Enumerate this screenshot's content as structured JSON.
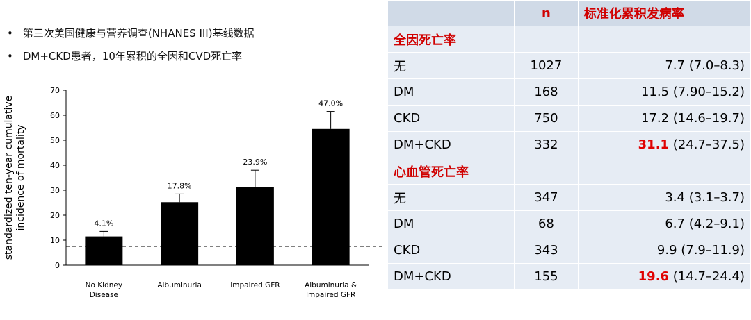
{
  "bullets": [
    "第三次美国健康与营养调查(NHANES III)基线数据",
    "DM+CKD患者，10年累积的全因和CVD死亡率"
  ],
  "chart_data": {
    "type": "bar",
    "ylabel": [
      "standardized ten-year cumulative",
      "incidence of mortality"
    ],
    "categories": [
      "No Kidney\nDisease",
      "Albuminuria",
      "Impaired GFR",
      "Albuminuria &\nImpaired GFR"
    ],
    "values": [
      11.5,
      25.2,
      31.2,
      54.5
    ],
    "errors": [
      2,
      3.3,
      6.8,
      7
    ],
    "annotations": [
      "4.1%",
      "17.8%",
      "23.9%",
      "47.0%"
    ],
    "reference_line": 7.5,
    "color": "#000000",
    "ylim": [
      0,
      70
    ],
    "yticks": [
      0,
      10,
      20,
      30,
      40,
      50,
      60,
      70
    ]
  },
  "table": {
    "header": [
      "n",
      "标准化累积发病率"
    ],
    "sections": [
      {
        "title": "全因死亡率",
        "rows": [
          {
            "label": "无",
            "n": "1027",
            "rate": "7.7 (7.0–8.3)"
          },
          {
            "label": "DM",
            "n": "168",
            "rate": "11.5 (7.90–15.2)"
          },
          {
            "label": "CKD",
            "n": "750",
            "rate": "17.2 (14.6–19.7)"
          },
          {
            "label": "DM+CKD",
            "n": "332",
            "highlight": "31.1",
            "rate": "(24.7–37.5)"
          }
        ]
      },
      {
        "title": "心血管死亡率",
        "rows": [
          {
            "label": "无",
            "n": "347",
            "rate": "3.4 (3.1–3.7)"
          },
          {
            "label": "DM",
            "n": "68",
            "rate": "6.7 (4.2–9.1)"
          },
          {
            "label": "CKD",
            "n": "343",
            "rate": "9.9 (7.9–11.9)"
          },
          {
            "label": "DM+CKD",
            "n": "155",
            "highlight": "19.6",
            "rate": "(14.7–24.4)"
          }
        ]
      }
    ]
  }
}
